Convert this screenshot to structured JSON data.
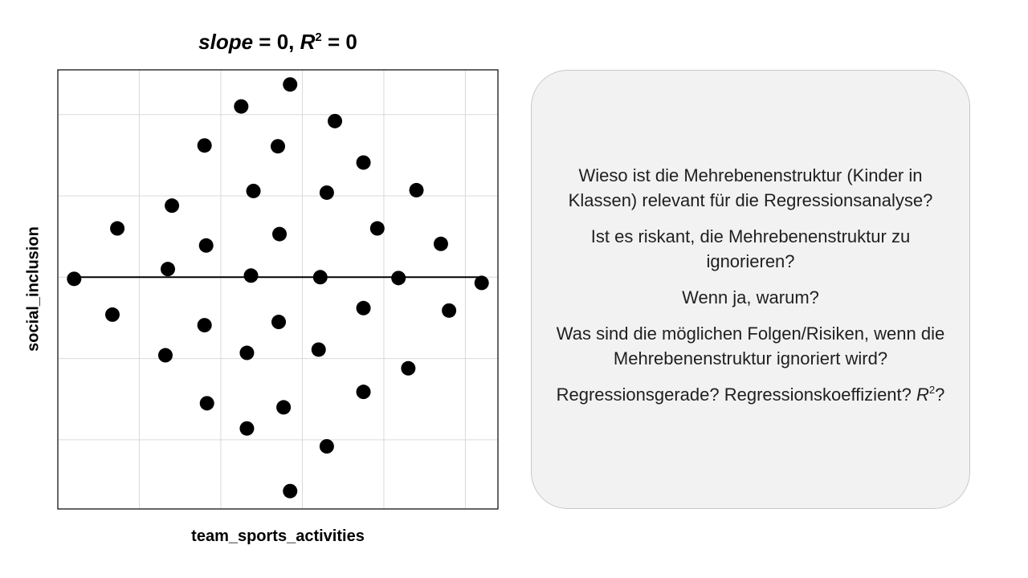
{
  "chart_data": {
    "type": "scatter",
    "title": {
      "slope_word": "slope",
      "slope_rest": " = 0, ",
      "r_letter": "R",
      "r_sup": "2",
      "r_rest": " = 0"
    },
    "xlabel": "team_sports_activities",
    "ylabel": "social_inclusion",
    "xlim": [
      0,
      5.4
    ],
    "ylim": [
      -2.85,
      2.55
    ],
    "grid": true,
    "tick_labels": false,
    "marker_color": "#000000",
    "regression_line": {
      "slope": 0,
      "intercept": 0,
      "x_range": [
        0.2,
        5.2
      ]
    },
    "x": [
      2.85,
      2.25,
      3.4,
      1.8,
      2.7,
      3.75,
      2.4,
      3.3,
      4.4,
      1.4,
      0.73,
      1.82,
      2.72,
      3.92,
      4.7,
      0.2,
      1.35,
      2.37,
      3.22,
      4.18,
      5.2,
      0.67,
      1.8,
      2.71,
      3.75,
      4.8,
      1.32,
      2.32,
      3.2,
      4.3,
      1.83,
      2.77,
      3.75,
      2.32,
      3.3,
      2.85
    ],
    "y": [
      2.37,
      2.1,
      1.92,
      1.62,
      1.61,
      1.41,
      1.06,
      1.04,
      1.07,
      0.88,
      0.6,
      0.39,
      0.53,
      0.6,
      0.41,
      -0.02,
      0.1,
      0.02,
      0.0,
      -0.01,
      -0.07,
      -0.46,
      -0.59,
      -0.55,
      -0.38,
      -0.41,
      -0.96,
      -0.93,
      -0.89,
      -1.12,
      -1.55,
      -1.6,
      -1.41,
      -1.86,
      -2.08,
      -2.63
    ]
  },
  "panel": {
    "q1": "Wieso ist die Mehrebenenstruktur (Kinder in Klassen) relevant für die Regressionsanalyse?",
    "q2": "Ist es riskant, die Mehrebenenstruktur zu ignorieren?",
    "q3": "Wenn ja, warum?",
    "q4": "Was sind die möglichen Folgen/Risiken, wenn die Mehrebenenstruktur ignoriert wird?",
    "q5_text": "Regressionsgerade? Regressionskoeffizient?",
    "q5_r": "R",
    "q5_sup": "2",
    "q5_end": "?"
  },
  "colors": {
    "panel_bg": "#f2f2f2",
    "grid": "#d9d9d9",
    "frame": "#000000"
  }
}
